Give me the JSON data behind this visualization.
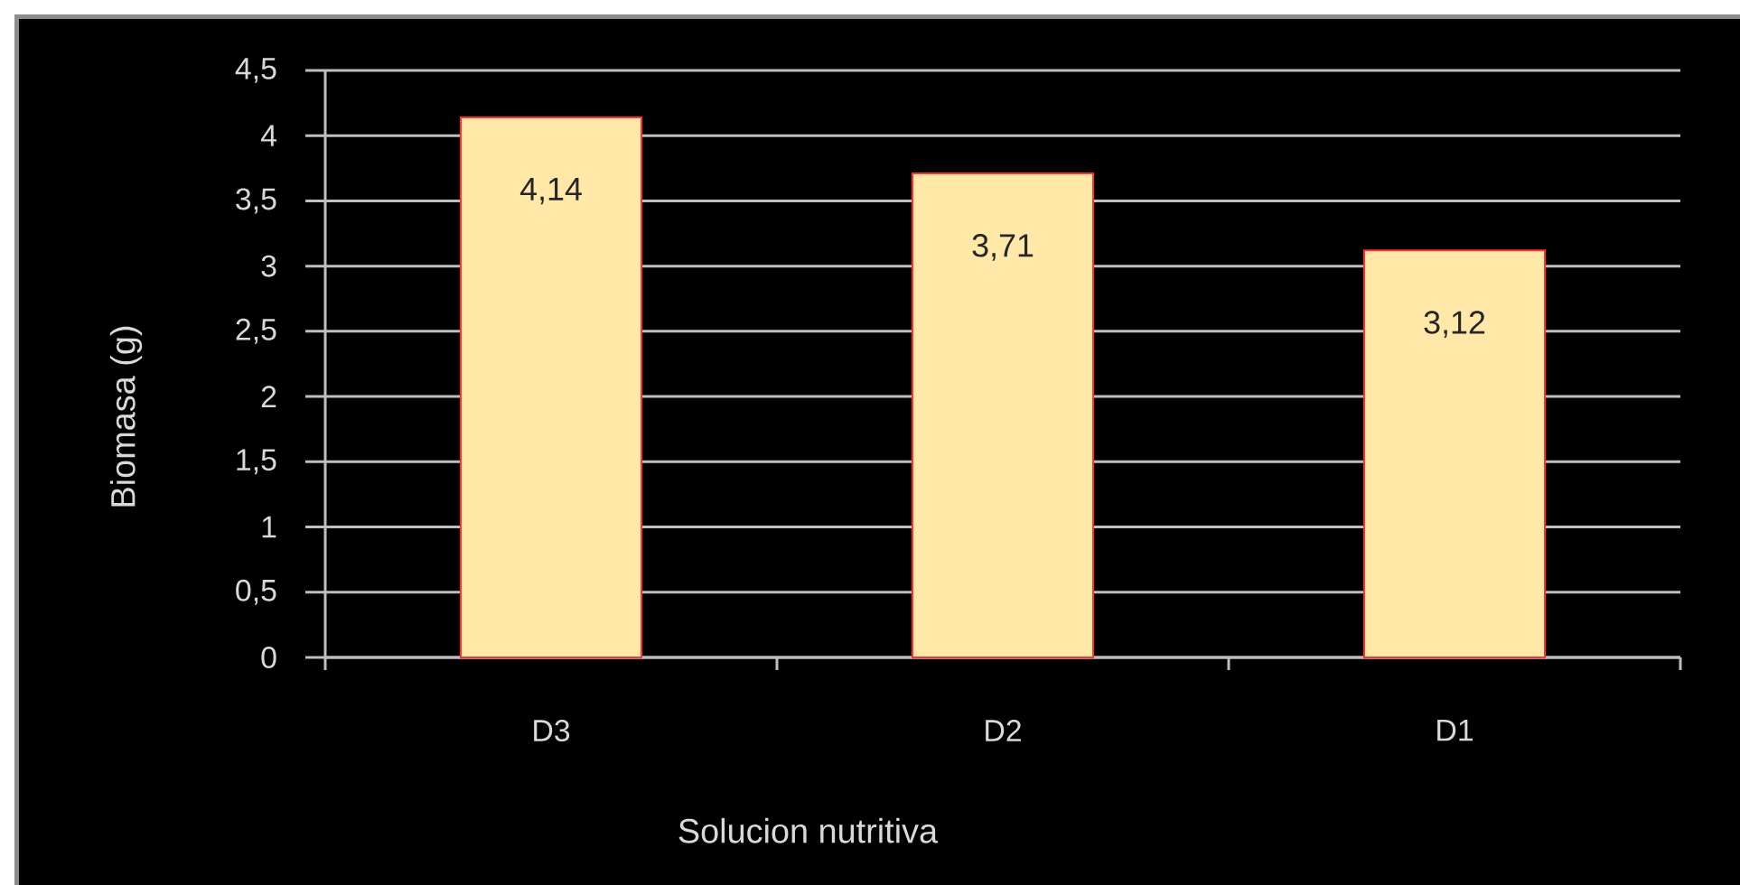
{
  "chart_data": {
    "type": "bar",
    "xlabel": "Solucion nutritiva",
    "ylabel": "Biomasa (g)",
    "categories": [
      "D3",
      "D2",
      "D1"
    ],
    "values": [
      4.14,
      3.71,
      3.12
    ],
    "value_labels": [
      "4,14",
      "3,71",
      "3,12"
    ],
    "color": "#ffe8a8",
    "ylim": [
      0,
      4.5
    ],
    "yticks": [
      0,
      {
        "value": 0.5,
        "label": "0,5"
      },
      1,
      {
        "value": 1.5,
        "label": "1,5"
      },
      2,
      {
        "value": 2.5,
        "label": "2,5"
      },
      3,
      {
        "value": 3.5,
        "label": "3,5"
      },
      4,
      {
        "value": 4.5,
        "label": "4,5"
      }
    ],
    "grid": "y"
  }
}
